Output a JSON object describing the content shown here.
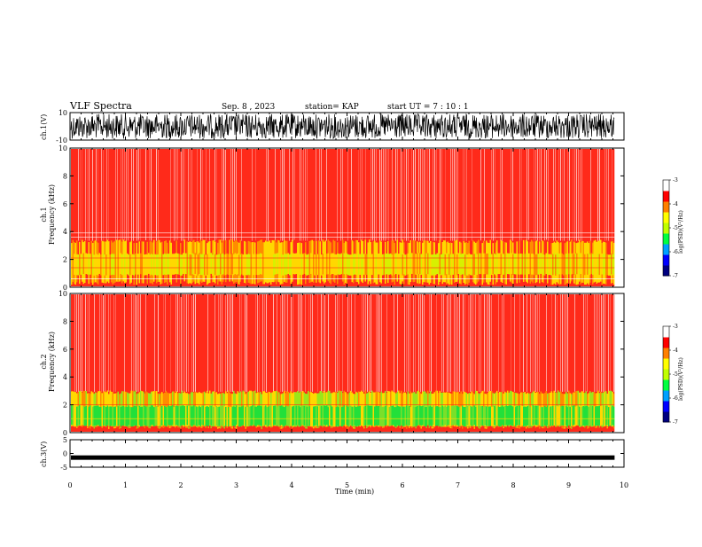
{
  "header": {
    "title": "VLF Spectra",
    "date": "Sep. 8 , 2023",
    "station": "station= KAP",
    "start": "start  UT  =   7 : 10 : 1"
  },
  "chart_data": [
    {
      "type": "line",
      "panel": "ch1-waveform",
      "ylabel": "ch.1(V)",
      "ylim": [
        -10,
        10
      ],
      "yticks": [
        "10",
        "-10"
      ],
      "x_range_min": [
        0,
        9.83
      ],
      "description": "dense noise waveform"
    },
    {
      "type": "heatmap",
      "panel": "ch1-spectrogram",
      "ylabel_line1": "ch.1",
      "ylabel_line2": "Frequency  (kHz)",
      "ylim": [
        0,
        10
      ],
      "yticks": [
        "0",
        "2",
        "4",
        "6",
        "8",
        "10"
      ],
      "bands": [
        {
          "from": 0,
          "to": 3.3,
          "dominant": "yellow-red"
        },
        {
          "from": 3.3,
          "to": 10,
          "dominant": "red-white"
        }
      ],
      "colorbar": {
        "label": "log(PSD)(V²/Hz)",
        "range": [
          -7,
          -3
        ],
        "ticks": [
          "-3",
          "-4",
          "-5",
          "-6",
          "-7"
        ]
      }
    },
    {
      "type": "heatmap",
      "panel": "ch2-spectrogram",
      "ylabel_line1": "ch.2",
      "ylabel_line2": "Frequency  (kHz)",
      "ylim": [
        0,
        10
      ],
      "yticks": [
        "0",
        "2",
        "4",
        "6",
        "8",
        "10"
      ],
      "bands": [
        {
          "from": 0,
          "to": 1.9,
          "dominant": "green"
        },
        {
          "from": 1.9,
          "to": 3.0,
          "dominant": "yellow-green"
        },
        {
          "from": 3.0,
          "to": 10,
          "dominant": "red-white"
        }
      ],
      "colorbar": {
        "label": "log(PSD)(V²/Hz)",
        "range": [
          -7,
          -3
        ],
        "ticks": [
          "-3",
          "-4",
          "-5",
          "-6",
          "-7"
        ]
      }
    },
    {
      "type": "line",
      "panel": "ch3-waveform",
      "ylabel": "ch.3(V)",
      "ylim": [
        -5,
        5
      ],
      "yticks": [
        "5",
        "0",
        "-5"
      ],
      "description": "thin band near -1.5 V"
    }
  ],
  "xaxis": {
    "label": "Time  (min)",
    "ticks": [
      "0",
      "1",
      "2",
      "3",
      "4",
      "5",
      "6",
      "7",
      "8",
      "9",
      "10"
    ],
    "xlim": [
      0,
      10
    ],
    "data_end": 9.83
  },
  "colors": {
    "bg": "#ffffff",
    "line": "#000000",
    "red": "#ff2a1a",
    "yellow": "#ffd800",
    "green": "#22e03a"
  }
}
